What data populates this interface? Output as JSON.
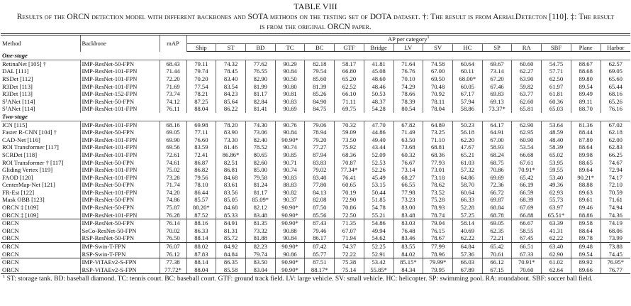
{
  "header": {
    "title": "TABLE VIII",
    "caption": "Results of the ORCN detection model with different backbones and SOTA methods on the testing set of DOTA dataset. †: The result is from AerialDetecton [110]. ‡: The result is from the original ORCN paper.",
    "columns": [
      "Method",
      "Backbone",
      "mAP"
    ],
    "ap_group": "AP per category",
    "ap_note": "1",
    "categories": [
      "Ship",
      "ST",
      "BD",
      "TC",
      "BC",
      "GTF",
      "Bridge",
      "LV",
      "SV",
      "HC",
      "SP",
      "RA",
      "SBF",
      "Plane",
      "Harbor"
    ]
  },
  "table": {
    "sections": [
      {
        "label": "One-stage",
        "rows": [
          [
            "RetinaNet [105] †",
            "IMP-ResNet-50-FPN",
            "68.43",
            "79.11",
            "74.32",
            "77.62",
            "90.29",
            "82.18",
            "58.17",
            "41.81",
            "71.64",
            "74.58",
            "60.64",
            "69.67",
            "60.60",
            "54.75",
            "88.67",
            "62.57"
          ],
          [
            "DAL [111]",
            "IMP-ResNet-101-FPN",
            "71.44",
            "79.74",
            "78.45",
            "76.55",
            "90.84",
            "79.54",
            "66.80",
            "45.08",
            "76.76",
            "67.00",
            "60.11",
            "73.14",
            "62.27",
            "57.71",
            "88.68",
            "69.05"
          ],
          [
            "RSDet [112]",
            "IMP-ResNet-101-FPN",
            "72.20",
            "70.20",
            "83.40",
            "82.90",
            "90.50",
            "85.60",
            "65.20",
            "48.60",
            "70.10",
            "69.50",
            "68.00*",
            "67.20",
            "63.90",
            "62.50",
            "89.80",
            "65.60"
          ],
          [
            "R3Det [113]",
            "IMP-ResNet-101-FPN",
            "71.69",
            "77.54",
            "83.54",
            "81.99",
            "90.80",
            "81.39",
            "62.52",
            "48.46",
            "74.29",
            "70.48",
            "60.05",
            "67.46",
            "59.82",
            "61.97",
            "89.54",
            "65.44"
          ],
          [
            "R3Det [113]",
            "IMP-ResNet-152-FPN",
            "73.74",
            "78.21",
            "84.23",
            "81.17",
            "90.81",
            "85.26",
            "66.10",
            "50.53",
            "78.66",
            "70.92",
            "67.17",
            "69.83",
            "63.77",
            "61.81",
            "89.49",
            "68.16"
          ],
          [
            "S²ANet [114]",
            "IMP-ResNet-50-FPN",
            "74.12",
            "87.25",
            "85.64",
            "82.84",
            "90.83",
            "84.90",
            "71.11",
            "48.37",
            "78.39",
            "78.11",
            "57.94",
            "69.13",
            "62.60",
            "60.36",
            "89.11",
            "65.26"
          ],
          [
            "S²ANet [114]",
            "IMP-ResNet-101-FPN",
            "76.11",
            "88.04",
            "86.22",
            "81.41",
            "90.69",
            "84.75",
            "69.75",
            "54.28",
            "80.54",
            "78.04",
            "58.86",
            "73.37*",
            "65.81",
            "65.03",
            "88.70",
            "76.16"
          ]
        ]
      },
      {
        "label": "Two-stage",
        "rows": [
          [
            "ICN [115]",
            "IMP-ResNet-101-FPN",
            "68.16",
            "69.98",
            "78.20",
            "74.30",
            "90.76",
            "79.06",
            "70.32",
            "47.70",
            "67.82",
            "64.89",
            "50.23",
            "64.17",
            "62.90",
            "53.64",
            "81.36",
            "67.02"
          ],
          [
            "Faster R-CNN [104] †",
            "IMP-ResNet-50-FPN",
            "69.05",
            "77.11",
            "83.90",
            "73.06",
            "90.84",
            "78.94",
            "59.09",
            "44.86",
            "71.49",
            "73.25",
            "56.18",
            "64.91",
            "62.95",
            "48.59",
            "88.44",
            "62.18"
          ],
          [
            "CAD-Net [116]",
            "IMP-ResNet-101-FPN",
            "69.90",
            "76.60",
            "73.30",
            "82.40",
            "90.90*",
            "79.20",
            "73.50",
            "49.40",
            "63.50",
            "71.10",
            "62.20",
            "67.00",
            "60.90",
            "48.40",
            "87.80",
            "62.00"
          ],
          [
            "ROI Transformer [117]",
            "IMP-ResNet-101-FPN",
            "69.56",
            "83.59",
            "81.46",
            "78.52",
            "90.74",
            "77.27",
            "75.92",
            "43.44",
            "73.68",
            "68.81",
            "47.67",
            "58.93",
            "53.54",
            "58.39",
            "88.64",
            "62.83"
          ],
          [
            "SCRDet [118]",
            "IMP-ResNet-101-FPN",
            "72.61",
            "72.41",
            "86.86*",
            "80.65",
            "90.85",
            "87.94",
            "68.36",
            "52.09",
            "60.32",
            "68.36",
            "65.21",
            "68.24",
            "66.68",
            "65.02",
            "89.98",
            "66.25"
          ],
          [
            "ROI Transformer † [117]",
            "IMP-ResNet-50-FPN",
            "74.61",
            "86.87",
            "82.51",
            "82.60",
            "90.71",
            "83.83",
            "70.87",
            "52.53",
            "76.67",
            "77.93",
            "61.03",
            "68.75",
            "67.61",
            "53.95",
            "88.65",
            "74.67"
          ],
          [
            "Gliding Vertex [119]",
            "IMP-ResNet-101-FPN",
            "75.02",
            "86.82",
            "86.81",
            "85.00",
            "90.74",
            "79.02",
            "77.34*",
            "52.26",
            "73.14",
            "73.01",
            "57.32",
            "70.86",
            "70.91*",
            "59.55",
            "89.64",
            "72.94"
          ],
          [
            "FAOD [120]",
            "IMP-ResNet-101-FPN",
            "73.28",
            "79.56",
            "84.68",
            "79.58",
            "90.83",
            "83.40",
            "76.41",
            "45.49",
            "68.27",
            "73.18",
            "64.86",
            "69.69",
            "65.42",
            "53.40",
            "90.21*",
            "74.17"
          ],
          [
            "CenterMap-Net [121]",
            "IMP-ResNet-50-FPN",
            "71.74",
            "78.10",
            "83.61",
            "81.24",
            "88.83",
            "77.80",
            "60.65",
            "53.15",
            "66.55",
            "78.62",
            "58.70",
            "72.36",
            "66.19",
            "49.36",
            "88.88",
            "72.10"
          ],
          [
            "FR-Est [122]",
            "IMP-ResNet-101-FPN",
            "74.20",
            "86.44",
            "83.56",
            "81.17",
            "90.82",
            "84.13",
            "70.19",
            "50.44",
            "77.98",
            "73.52",
            "60.64",
            "66.72",
            "66.59",
            "62.93",
            "89.63",
            "70.59"
          ],
          [
            "Mask OBB [123]",
            "IMP-ResNet-50-FPN",
            "74.86",
            "85.57",
            "85.05",
            "85.09*",
            "90.37",
            "82.08",
            "72.90",
            "51.85",
            "73.23",
            "75.28",
            "66.33",
            "69.87",
            "68.39",
            "55.73",
            "89.61",
            "71.61"
          ],
          [
            "ORCN ‡ [109]",
            "IMP-ResNet-50-FPN",
            "75.87",
            "88.20*",
            "84.68",
            "82.12",
            "90.90*",
            "87.50",
            "70.86",
            "54.78",
            "83.00",
            "78.93",
            "52.28",
            "68.84",
            "67.69",
            "63.97",
            "89.46",
            "74.94"
          ],
          [
            "ORCN ‡ [109]",
            "IMP-ResNet-101-FPN",
            "76.28",
            "87.52",
            "85.33",
            "83.48",
            "90.90*",
            "85.56",
            "72.50",
            "55.21",
            "83.48",
            "78.74",
            "57.25",
            "68.78",
            "66.88",
            "65.51*",
            "88.86",
            "74.36"
          ]
        ]
      },
      {
        "rows": [
          [
            "ORCN",
            "IMP-ResNet-50-FPN",
            "76.14",
            "88.16",
            "84.91",
            "81.35",
            "90.90*",
            "87.43",
            "71.35",
            "54.86",
            "83.03",
            "79.04",
            "58.14",
            "69.05",
            "66.67",
            "63.39",
            "89.58",
            "74.19"
          ],
          [
            "ORCN",
            "SeCo-ResNet-50-FPN",
            "70.02",
            "86.33",
            "81.31",
            "73.32",
            "90.88",
            "79.46",
            "67.07",
            "49.94",
            "76.48",
            "76.15",
            "40.69",
            "62.35",
            "58.55",
            "41.31",
            "88.64",
            "68.06"
          ],
          [
            "ORCN",
            "RSP-ResNet-50-FPN",
            "76.50",
            "88.14",
            "85.72",
            "81.88",
            "90.84",
            "86.17",
            "71.94",
            "54.62",
            "83.46",
            "78.67",
            "62.22",
            "72.21",
            "67.45",
            "62.22",
            "89.78",
            "73.99"
          ],
          [
            "ORCN",
            "IMP-Swin-T-FPN",
            "76.07",
            "88.02",
            "84.92",
            "82.23",
            "90.90*",
            "87.42",
            "74.37",
            "52.25",
            "83.55",
            "77.99",
            "64.84",
            "65.42",
            "66.51",
            "63.40",
            "89.48",
            "73.88"
          ],
          [
            "ORCN",
            "RSP-Swin-T-FPN",
            "76.12",
            "87.83",
            "84.84",
            "79.74",
            "90.86",
            "85.77",
            "72.22",
            "52.91",
            "84.02",
            "78.96",
            "57.36",
            "70.61",
            "67.33",
            "62.90",
            "89.54",
            "74.45"
          ],
          [
            "ORCN",
            "IMP-ViTAEv2-S-FPN",
            "77.38",
            "88.14",
            "86.35",
            "83.50",
            "90.90*",
            "87.51",
            "75.38",
            "53.42",
            "85.15*",
            "79.99*",
            "66.03",
            "66.12",
            "70.91*",
            "61.02",
            "89.92",
            "76.95*"
          ],
          [
            "ORCN",
            "RSP-ViTAEv2-S-FPN",
            "77.72*",
            "88.04",
            "85.58",
            "83.04",
            "90.90*",
            "88.17*",
            "75.14",
            "55.85*",
            "84.34",
            "79.95",
            "67.89",
            "67.15",
            "70.60",
            "62.64",
            "89.66",
            "76.77"
          ]
        ]
      }
    ]
  },
  "footnote": {
    "mark": "1",
    "text": "ST: storage tank. BD: baseball diamond. TC: tennis court. BC: baseball court. GTF: ground track field. LV: large vehicle. SV: small vehicle. HC: helicopter. SP: swimming pool. RA: roundabout. SBF: soccer ball field."
  }
}
